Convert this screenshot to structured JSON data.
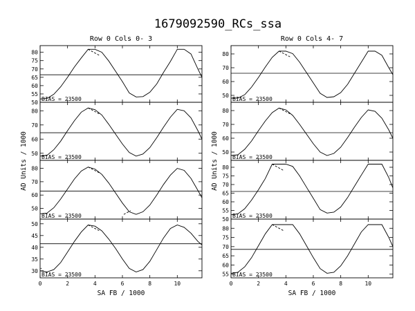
{
  "figure_title": "1679092590_RCs_ssa",
  "columns": [
    {
      "title": "Row  0  Cols  0- 3"
    },
    {
      "title": "Row  0  Cols  4- 7"
    }
  ],
  "ylabel": "AD Units / 1000",
  "xlabel": "SA FB / 1000",
  "chart_data": [
    {
      "type": "line",
      "panel": "Row 0 Col 0",
      "xlim": [
        0,
        11.8
      ],
      "ylim": [
        50,
        84
      ],
      "yticks": [
        50,
        55,
        60,
        65,
        70,
        75,
        80
      ],
      "xticks": [
        0,
        2,
        4,
        6,
        8,
        10
      ],
      "bias_label": "BIAS = 23500",
      "series": [
        {
          "x": [
            0,
            0.5,
            1,
            1.5,
            2,
            2.5,
            3,
            3.5,
            4,
            4.5,
            5,
            5.5,
            6,
            6.5,
            7,
            7.5,
            8,
            8.5,
            9,
            9.5,
            10,
            10.5,
            11,
            11.5,
            11.8
          ],
          "y": [
            52.0,
            52.3,
            54.8,
            59.3,
            65.0,
            71.2,
            76.6,
            81.8,
            81.8,
            80.0,
            74.8,
            68.6,
            62.4,
            55.6,
            53.2,
            53.4,
            56.0,
            61.0,
            68.0,
            74.5,
            81.8,
            81.8,
            79.0,
            70.0,
            65.0
          ]
        }
      ],
      "hline": 66.5
    },
    {
      "type": "line",
      "panel": "Row 0 Col 4",
      "xlim": [
        0,
        11.8
      ],
      "ylim": [
        45,
        86
      ],
      "yticks": [
        50,
        60,
        70,
        80
      ],
      "xticks": [
        0,
        2,
        4,
        6,
        8,
        10
      ],
      "bias_label": "BIAS = 23500",
      "series": [
        {
          "x": [
            0,
            0.5,
            1,
            1.5,
            2,
            2.5,
            3,
            3.5,
            4,
            4.5,
            5,
            5.5,
            6,
            6.5,
            7,
            7.5,
            8,
            8.5,
            9,
            9.5,
            10,
            10.5,
            11,
            11.5,
            11.8
          ],
          "y": [
            48.0,
            48.0,
            50.5,
            56.0,
            63.0,
            70.5,
            77.5,
            82.0,
            82.0,
            80.2,
            74.0,
            66.5,
            59.0,
            51.5,
            48.5,
            49.0,
            52.0,
            58.0,
            66.0,
            74.0,
            82.0,
            82.0,
            79.0,
            70.0,
            65.0
          ]
        }
      ],
      "hline": 66.0
    },
    {
      "type": "line",
      "panel": "Row 1 Col 0",
      "xlim": [
        0,
        11.8
      ],
      "ylim": [
        45,
        86
      ],
      "yticks": [
        50,
        60,
        70,
        80
      ],
      "xticks": [
        0,
        2,
        4,
        6,
        8,
        10
      ],
      "bias_label": "BIAS = 23500",
      "series": [
        {
          "x": [
            0,
            0.5,
            1,
            1.5,
            2,
            2.5,
            3,
            3.5,
            4,
            4.5,
            5,
            5.5,
            6,
            6.5,
            7,
            7.5,
            8,
            8.5,
            9,
            9.5,
            10,
            10.5,
            11,
            11.5,
            11.8
          ],
          "y": [
            48.0,
            48.5,
            52.5,
            58.5,
            66.0,
            73.0,
            79.0,
            82.0,
            80.8,
            77.0,
            70.5,
            63.5,
            56.5,
            50.5,
            48.0,
            49.5,
            54.0,
            61.0,
            68.5,
            75.5,
            81.0,
            80.0,
            75.0,
            66.0,
            60.0
          ]
        }
      ],
      "hline": 64.5
    },
    {
      "type": "line",
      "panel": "Row 1 Col 4",
      "xlim": [
        0,
        11.8
      ],
      "ylim": [
        44,
        86
      ],
      "yticks": [
        50,
        60,
        70,
        80
      ],
      "xticks": [
        0,
        2,
        4,
        6,
        8,
        10
      ],
      "bias_label": "BIAS = 23500",
      "series": [
        {
          "x": [
            0,
            0.5,
            1,
            1.5,
            2,
            2.5,
            3,
            3.5,
            4,
            4.5,
            5,
            5.5,
            6,
            6.5,
            7,
            7.5,
            8,
            8.5,
            9,
            9.5,
            10,
            10.5,
            11,
            11.5,
            11.8
          ],
          "y": [
            47.5,
            48.0,
            52.0,
            58.0,
            65.5,
            72.5,
            78.5,
            81.8,
            80.5,
            76.5,
            70.0,
            63.0,
            56.0,
            50.0,
            47.5,
            49.0,
            53.5,
            60.5,
            68.0,
            75.0,
            80.5,
            79.5,
            74.5,
            66.0,
            60.0
          ]
        }
      ],
      "hline": 64.0
    },
    {
      "type": "line",
      "panel": "Row 2 Col 0",
      "xlim": [
        0,
        11.8
      ],
      "ylim": [
        42,
        86
      ],
      "yticks": [
        50,
        60,
        70,
        80
      ],
      "xticks": [
        0,
        2,
        4,
        6,
        8,
        10
      ],
      "bias_label": "BIAS = 23500",
      "series": [
        {
          "x": [
            0,
            0.5,
            1,
            1.5,
            2,
            2.5,
            3,
            3.5,
            4,
            4.5,
            5,
            5.5,
            6,
            6.5,
            7,
            7.5,
            8,
            8.5,
            9,
            9.5,
            10,
            10.5,
            11,
            11.5,
            11.8
          ],
          "y": [
            46.0,
            46.5,
            50.5,
            57.0,
            64.5,
            72.0,
            78.0,
            81.0,
            79.5,
            75.5,
            69.0,
            61.5,
            54.0,
            47.5,
            45.5,
            47.5,
            52.5,
            60.0,
            68.0,
            75.0,
            80.0,
            78.5,
            72.5,
            63.5,
            58.0
          ]
        }
      ],
      "hline": 63.0
    },
    {
      "type": "line",
      "panel": "Row 2 Col 4",
      "xlim": [
        0,
        11.8
      ],
      "ylim": [
        50,
        84
      ],
      "yticks": [
        50,
        55,
        60,
        65,
        70,
        75,
        80
      ],
      "xticks": [
        0,
        2,
        4,
        6,
        8,
        10
      ],
      "bias_label": "BIAS = 23500",
      "series": [
        {
          "x": [
            0,
            0.5,
            1,
            1.5,
            2,
            2.5,
            3,
            3.5,
            4,
            4.5,
            5,
            5.5,
            6,
            6.5,
            7,
            7.5,
            8,
            8.5,
            9,
            9.5,
            10,
            10.5,
            11,
            11.5,
            11.8
          ],
          "y": [
            52.5,
            53.0,
            56.0,
            61.0,
            67.0,
            73.5,
            81.8,
            81.8,
            81.8,
            80.5,
            75.0,
            68.5,
            62.0,
            55.5,
            53.5,
            54.0,
            57.0,
            62.5,
            69.0,
            75.5,
            81.8,
            81.8,
            81.8,
            74.0,
            68.0
          ]
        }
      ],
      "hline": 66.0
    },
    {
      "type": "line",
      "panel": "Row 3 Col 0",
      "xlim": [
        0,
        11.8
      ],
      "ylim": [
        27,
        52
      ],
      "yticks": [
        30,
        35,
        40,
        45,
        50
      ],
      "xticks": [
        0,
        2,
        4,
        6,
        8,
        10
      ],
      "bias_label": "BIAS = 23500",
      "series": [
        {
          "x": [
            0,
            0.5,
            1,
            1.5,
            2,
            2.5,
            3,
            3.5,
            4,
            4.5,
            5,
            5.5,
            6,
            6.5,
            7,
            7.5,
            8,
            8.5,
            9,
            9.5,
            10,
            10.5,
            11,
            11.5,
            11.8
          ],
          "y": [
            30.0,
            29.5,
            30.5,
            33.5,
            38.0,
            42.5,
            46.5,
            49.5,
            49.0,
            47.0,
            43.5,
            39.5,
            35.0,
            31.0,
            29.5,
            30.5,
            34.0,
            39.0,
            44.0,
            48.0,
            49.5,
            48.5,
            46.0,
            42.5,
            41.0
          ]
        }
      ],
      "hline": 41.5
    },
    {
      "type": "line",
      "panel": "Row 3 Col 4",
      "xlim": [
        0,
        11.8
      ],
      "ylim": [
        53,
        85
      ],
      "yticks": [
        55,
        60,
        65,
        70,
        75,
        80
      ],
      "xticks": [
        0,
        2,
        4,
        6,
        8,
        10
      ],
      "bias_label": "BIAS = 23500",
      "series": [
        {
          "x": [
            0,
            0.5,
            1,
            1.5,
            2,
            2.5,
            3,
            3.5,
            4,
            4.5,
            5,
            5.5,
            6,
            6.5,
            7,
            7.5,
            8,
            8.5,
            9,
            9.5,
            10,
            10.5,
            11,
            11.5,
            11.8
          ],
          "y": [
            55.5,
            56.0,
            59.0,
            64.0,
            70.5,
            77.0,
            82.0,
            82.0,
            82.0,
            82.0,
            77.0,
            70.5,
            64.0,
            58.0,
            55.5,
            56.0,
            59.5,
            65.0,
            71.5,
            78.0,
            82.0,
            82.0,
            82.0,
            75.0,
            70.0
          ]
        }
      ],
      "hline": 68.5
    }
  ]
}
